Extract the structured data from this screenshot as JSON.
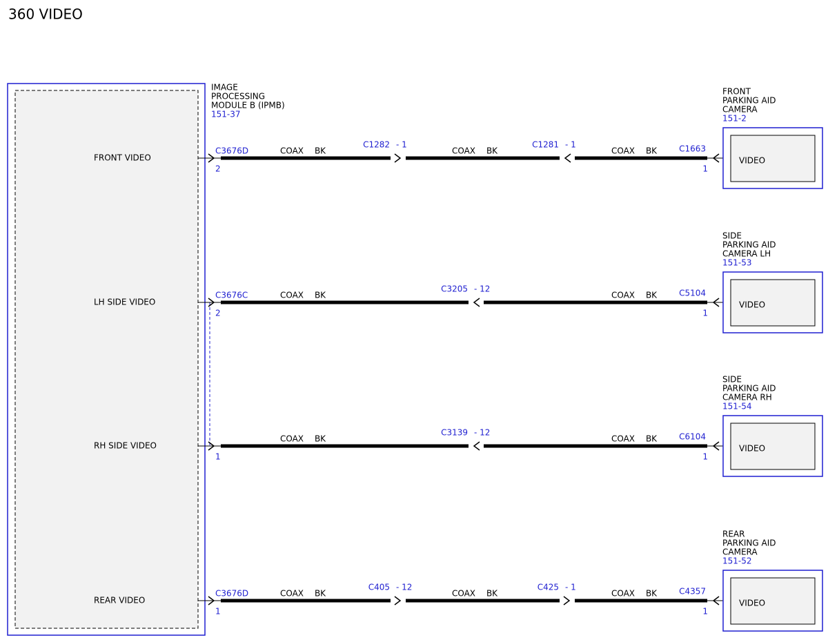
{
  "title": "360 VIDEO",
  "module": {
    "name_lines": [
      "IMAGE",
      "PROCESSING",
      "MODULE B (IPMB)"
    ],
    "ref": "151-37"
  },
  "circuits": [
    {
      "label": "FRONT VIDEO",
      "module_connector": "C3676D",
      "module_pin": "2",
      "segments": [
        {
          "cable": "COAX",
          "color": "BK"
        },
        {
          "cable": "COAX",
          "color": "BK"
        },
        {
          "cable": "COAX",
          "color": "BK"
        }
      ],
      "inline": [
        {
          "connector": "C1282",
          "pin": "- 1",
          "arrow": "right"
        },
        {
          "connector": "C1281",
          "pin": "- 1",
          "arrow": "left"
        }
      ],
      "device_connector": "C1663",
      "device_pin": "1",
      "device": {
        "name_lines": [
          "FRONT",
          "PARKING AID",
          "CAMERA"
        ],
        "ref": "151-2",
        "pin_label": "VIDEO"
      }
    },
    {
      "label": "LH SIDE VIDEO",
      "module_connector": "C3676C",
      "module_pin": "2",
      "segments": [
        {
          "cable": "COAX",
          "color": "BK"
        },
        {
          "cable": "COAX",
          "color": "BK"
        }
      ],
      "inline": [
        {
          "connector": "C3205",
          "pin": "- 12",
          "arrow": "left"
        }
      ],
      "device_connector": "C5104",
      "device_pin": "1",
      "device": {
        "name_lines": [
          "SIDE",
          "PARKING AID",
          "CAMERA LH"
        ],
        "ref": "151-53",
        "pin_label": "VIDEO"
      }
    },
    {
      "label": "RH SIDE VIDEO",
      "module_pin": "1",
      "segments": [
        {
          "cable": "COAX",
          "color": "BK"
        },
        {
          "cable": "COAX",
          "color": "BK"
        }
      ],
      "inline": [
        {
          "connector": "C3139",
          "pin": "- 12",
          "arrow": "left"
        }
      ],
      "device_connector": "C6104",
      "device_pin": "1",
      "device": {
        "name_lines": [
          "SIDE",
          "PARKING AID",
          "CAMERA RH"
        ],
        "ref": "151-54",
        "pin_label": "VIDEO"
      }
    },
    {
      "label": "REAR VIDEO",
      "module_connector": "C3676D",
      "module_pin": "1",
      "segments": [
        {
          "cable": "COAX",
          "color": "BK"
        },
        {
          "cable": "COAX",
          "color": "BK"
        },
        {
          "cable": "COAX",
          "color": "BK"
        }
      ],
      "inline": [
        {
          "connector": "C405",
          "pin": "- 12",
          "arrow": "right"
        },
        {
          "connector": "C425",
          "pin": "- 1",
          "arrow": "right"
        }
      ],
      "device_connector": "C4357",
      "device_pin": "1",
      "device": {
        "name_lines": [
          "REAR",
          "PARKING AID",
          "CAMERA"
        ],
        "ref": "151-52",
        "pin_label": "VIDEO"
      }
    }
  ]
}
